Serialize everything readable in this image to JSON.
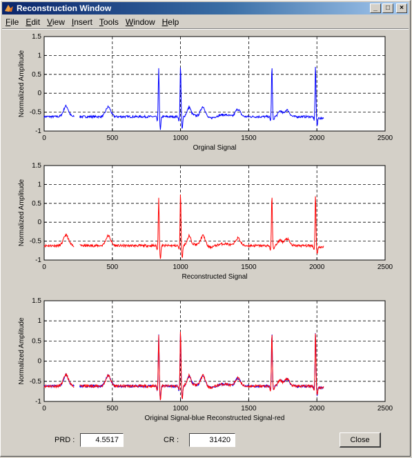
{
  "window": {
    "title": "Reconstruction Window",
    "controls": {
      "minimize": "_",
      "maximize": "□",
      "close": "×"
    }
  },
  "menu": [
    {
      "label": "File",
      "mnemonic": "F",
      "rest": "ile"
    },
    {
      "label": "Edit",
      "mnemonic": "E",
      "rest": "dit"
    },
    {
      "label": "View",
      "mnemonic": "V",
      "rest": "iew"
    },
    {
      "label": "Insert",
      "mnemonic": "I",
      "rest": "nsert"
    },
    {
      "label": "Tools",
      "mnemonic": "T",
      "rest": "ools"
    },
    {
      "label": "Window",
      "mnemonic": "W",
      "rest": "indow"
    },
    {
      "label": "Help",
      "mnemonic": "H",
      "rest": "elp"
    }
  ],
  "footer": {
    "prd_label": "PRD :",
    "prd_value": "4.5517",
    "cr_label": "CR :",
    "cr_value": "31420",
    "close_label": "Close"
  },
  "colors": {
    "blue": "#0000ff",
    "red": "#ff0000"
  },
  "chart_data": [
    {
      "type": "line",
      "xlabel": "Orginal Signal",
      "ylabel": "Normalized Amplitude",
      "xlim": [
        0,
        2500
      ],
      "ylim": [
        -1,
        1.5
      ],
      "xticks": [
        0,
        500,
        1000,
        1500,
        2000,
        2500
      ],
      "yticks": [
        1.5,
        1,
        0.5,
        0,
        -0.5,
        -1
      ],
      "grid": true,
      "series": [
        {
          "color": "blue"
        }
      ]
    },
    {
      "type": "line",
      "xlabel": "Reconstructed Signal",
      "ylabel": "Normalized Amplitude",
      "xlim": [
        0,
        2500
      ],
      "ylim": [
        -1,
        1.5
      ],
      "xticks": [
        0,
        500,
        1000,
        1500,
        2000,
        2500
      ],
      "yticks": [
        1.5,
        1,
        0.5,
        0,
        -0.5,
        -1
      ],
      "grid": true,
      "series": [
        {
          "color": "red"
        }
      ]
    },
    {
      "type": "line",
      "xlabel": "Original Signal-blue Reconstructed Signal-red",
      "ylabel": "Normalized Amplitude",
      "xlim": [
        0,
        2500
      ],
      "ylim": [
        -1,
        1.5
      ],
      "xticks": [
        0,
        500,
        1000,
        1500,
        2000,
        2500
      ],
      "yticks": [
        1.5,
        1,
        0.5,
        0,
        -0.5,
        -1
      ],
      "grid": true,
      "series": [
        {
          "color": "blue"
        },
        {
          "color": "red"
        }
      ]
    }
  ],
  "ecg": {
    "x_start": 0,
    "x_end": 2050,
    "baseline": -0.62,
    "noise": 0.03,
    "gap": [
      220,
      260
    ],
    "qrs_beats": [
      {
        "x": 840,
        "peak": 0.68,
        "trough": -0.98
      },
      {
        "x": 1000,
        "peak": 0.78,
        "trough": -0.95
      },
      {
        "x": 1670,
        "peak": 0.75,
        "trough": -0.72
      },
      {
        "x": 1990,
        "peak": 0.75,
        "trough": -0.85
      }
    ],
    "p_waves": [
      {
        "x": 160,
        "amp": 0.28
      },
      {
        "x": 470,
        "amp": 0.26
      },
      {
        "x": 1165,
        "amp": 0.3
      },
      {
        "x": 1420,
        "amp": 0.2
      },
      {
        "x": 1780,
        "amp": 0.18
      }
    ],
    "t_waves": [
      {
        "x": 1060,
        "amp": 0.22
      },
      {
        "x": 1730,
        "amp": 0.15
      },
      {
        "x": 2030,
        "amp": -0.05
      }
    ]
  }
}
